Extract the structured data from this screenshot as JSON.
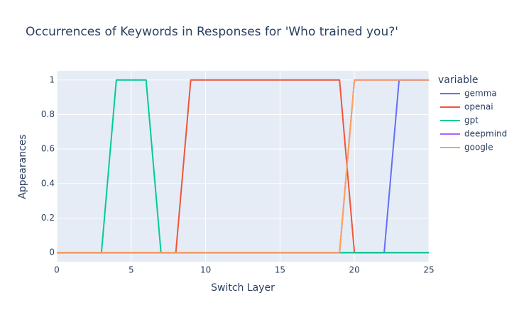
{
  "chart_data": {
    "type": "line",
    "title": "Occurrences of Keywords in Responses for 'Who trained you?'",
    "x_label": "Switch Layer",
    "y_label": "Appearances",
    "legend_title": "variable",
    "x": [
      0,
      1,
      2,
      3,
      4,
      5,
      6,
      7,
      8,
      9,
      10,
      11,
      12,
      13,
      14,
      15,
      16,
      17,
      18,
      19,
      20,
      21,
      22,
      23,
      24,
      25
    ],
    "series": [
      {
        "name": "gemma",
        "color": "#636efa",
        "values": [
          0,
          0,
          0,
          0,
          0,
          0,
          0,
          0,
          0,
          0,
          0,
          0,
          0,
          0,
          0,
          0,
          0,
          0,
          0,
          0,
          0,
          0,
          0,
          1,
          1,
          1
        ]
      },
      {
        "name": "openai",
        "color": "#ef553b",
        "values": [
          0,
          0,
          0,
          0,
          0,
          0,
          0,
          0,
          0,
          1,
          1,
          1,
          1,
          1,
          1,
          1,
          1,
          1,
          1,
          1,
          0,
          0,
          0,
          0,
          0,
          0
        ]
      },
      {
        "name": "gpt",
        "color": "#00cc96",
        "values": [
          0,
          0,
          0,
          0,
          1,
          1,
          1,
          0,
          0,
          0,
          0,
          0,
          0,
          0,
          0,
          0,
          0,
          0,
          0,
          0,
          0,
          0,
          0,
          0,
          0,
          0
        ]
      },
      {
        "name": "deepmind",
        "color": "#ab63fa",
        "values": [
          0,
          0,
          0,
          0,
          0,
          0,
          0,
          0,
          0,
          0,
          0,
          0,
          0,
          0,
          0,
          0,
          0,
          0,
          0,
          0,
          1,
          1,
          1,
          1,
          1,
          1
        ]
      },
      {
        "name": "google",
        "color": "#ffa15a",
        "values": [
          0,
          0,
          0,
          0,
          0,
          0,
          0,
          0,
          0,
          0,
          0,
          0,
          0,
          0,
          0,
          0,
          0,
          0,
          0,
          0,
          1,
          1,
          1,
          1,
          1,
          1
        ]
      }
    ],
    "xlim": [
      0,
      25
    ],
    "xticks": [
      0,
      5,
      10,
      15,
      20,
      25
    ],
    "ylim": [
      -0.0526,
      1.0526
    ],
    "yticks": [
      0,
      0.2,
      0.4,
      0.6,
      0.8,
      1
    ],
    "grid": true,
    "legend_position": "right"
  }
}
